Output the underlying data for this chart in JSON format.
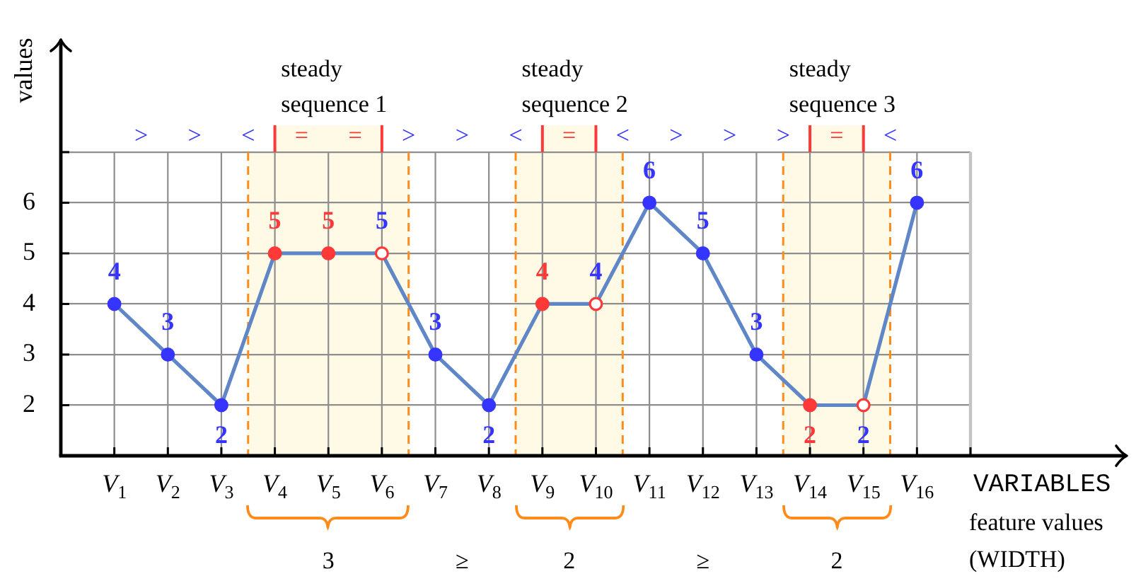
{
  "chart_data": {
    "type": "line",
    "ylabel": "values",
    "xlabel": "VARIABLES",
    "categories": [
      "V$_{1}$",
      "V$_{2}$",
      "V$_{3}$",
      "V$_{4}$",
      "V$_{5}$",
      "V$_{6}$",
      "V$_{7}$",
      "V$_{8}$",
      "V$_{9}$",
      "V$_{10}$",
      "V$_{11}$",
      "V$_{12}$",
      "V$_{13}$",
      "V$_{14}$",
      "V$_{15}$",
      "V$_{16}$"
    ],
    "series": [
      {
        "color": "#5f86c6",
        "values": [
          4,
          3,
          2,
          5,
          5,
          5,
          3,
          2,
          4,
          4,
          6,
          5,
          3,
          2,
          2,
          6
        ],
        "colors": [
          "#3535ff",
          "#3535ff",
          "#3535ff",
          "#ff3838",
          "#ff3838",
          "#ff3838",
          "#3535ff",
          "#3535ff",
          "#ff3838",
          "#ff3838",
          "#3535ff",
          "#3535ff",
          "#3535ff",
          "#ff3838",
          "#ff3838",
          "#3535ff"
        ]
      }
    ],
    "ylim": [
      1,
      9.2
    ],
    "yticks": [
      2,
      3,
      4,
      5,
      6,
      {
        "value": 7,
        "label": null
      }
    ],
    "grid": true,
    "marker": "circle",
    "line_style": "solid",
    "data_labels": true,
    "bands": [
      {
        "axis": "x",
        "from": "V$_{4}$",
        "to": "V$_{6}$",
        "label": "steady sequence 1",
        "color": "#fffae6"
      },
      {
        "axis": "x",
        "from": "V$_{9}$",
        "to": "V$_{10}$",
        "label": "steady sequence 2",
        "color": "#fffae6"
      },
      {
        "axis": "x",
        "from": "V$_{14}$",
        "to": "V$_{15}$",
        "label": "steady sequence 3",
        "color": "#fffae6"
      }
    ],
    "annotations": [
      ">",
      ">",
      "<",
      "=",
      "=",
      ">",
      ">",
      "<",
      "=",
      "<",
      ">",
      ">",
      ">",
      "=",
      "<",
      "3",
      "≥",
      "2",
      "≥",
      "2",
      "feature values (WIDTH)"
    ]
  }
}
